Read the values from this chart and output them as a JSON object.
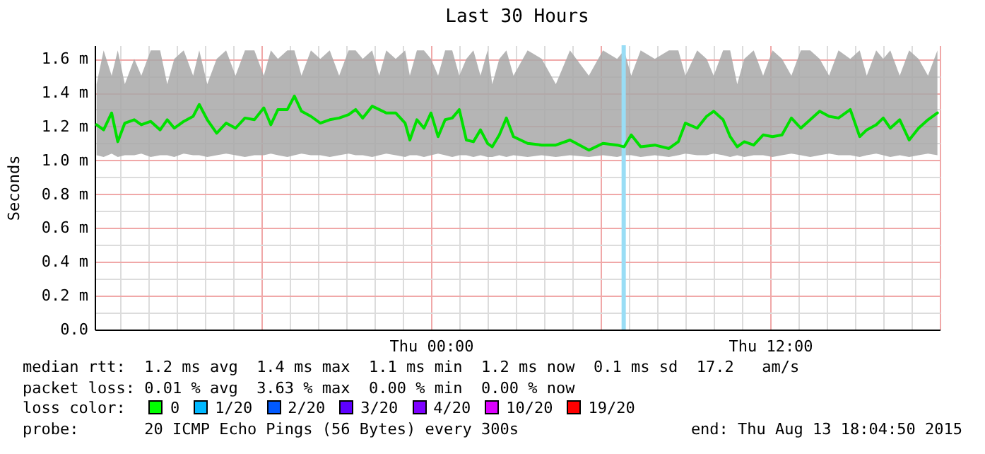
{
  "chart_data": {
    "type": "line",
    "title": "Last 30 Hours",
    "ylabel": "Seconds",
    "x": [
      "2015-08-12T12:10",
      "2015-08-12T12:25",
      "2015-08-12T12:42",
      "2015-08-12T12:55",
      "2015-08-12T13:10",
      "2015-08-12T13:30",
      "2015-08-12T13:45",
      "2015-08-12T14:05",
      "2015-08-12T14:25",
      "2015-08-12T14:40",
      "2015-08-12T14:55",
      "2015-08-12T15:15",
      "2015-08-12T15:35",
      "2015-08-12T15:48",
      "2015-08-12T16:05",
      "2015-08-12T16:25",
      "2015-08-12T16:45",
      "2015-08-12T17:05",
      "2015-08-12T17:25",
      "2015-08-12T17:45",
      "2015-08-12T18:05",
      "2015-08-12T18:20",
      "2015-08-12T18:35",
      "2015-08-12T18:55",
      "2015-08-12T19:10",
      "2015-08-12T19:25",
      "2015-08-12T19:45",
      "2015-08-12T20:05",
      "2015-08-12T20:25",
      "2015-08-12T20:45",
      "2015-08-12T21:05",
      "2015-08-12T21:20",
      "2015-08-12T21:35",
      "2015-08-12T21:55",
      "2015-08-12T22:10",
      "2015-08-12T22:25",
      "2015-08-12T22:45",
      "2015-08-12T23:05",
      "2015-08-12T23:15",
      "2015-08-12T23:30",
      "2015-08-12T23:45",
      "2015-08-13T00:00",
      "2015-08-13T00:15",
      "2015-08-13T00:30",
      "2015-08-13T00:45",
      "2015-08-13T01:00",
      "2015-08-13T01:15",
      "2015-08-13T01:30",
      "2015-08-13T01:45",
      "2015-08-13T02:00",
      "2015-08-13T02:10",
      "2015-08-13T02:25",
      "2015-08-13T02:40",
      "2015-08-13T02:55",
      "2015-08-13T03:25",
      "2015-08-13T03:55",
      "2015-08-13T04:25",
      "2015-08-13T04:55",
      "2015-08-13T05:35",
      "2015-08-13T06:05",
      "2015-08-13T06:35",
      "2015-08-13T06:50",
      "2015-08-13T07:05",
      "2015-08-13T07:25",
      "2015-08-13T07:55",
      "2015-08-13T08:25",
      "2015-08-13T08:45",
      "2015-08-13T09:00",
      "2015-08-13T09:25",
      "2015-08-13T09:45",
      "2015-08-13T10:00",
      "2015-08-13T10:20",
      "2015-08-13T10:35",
      "2015-08-13T10:50",
      "2015-08-13T11:05",
      "2015-08-13T11:25",
      "2015-08-13T11:45",
      "2015-08-13T12:05",
      "2015-08-13T12:25",
      "2015-08-13T12:45",
      "2015-08-13T13:05",
      "2015-08-13T13:25",
      "2015-08-13T13:45",
      "2015-08-13T14:05",
      "2015-08-13T14:25",
      "2015-08-13T14:50",
      "2015-08-13T15:10",
      "2015-08-13T15:25",
      "2015-08-13T15:45",
      "2015-08-13T16:00",
      "2015-08-13T16:15",
      "2015-08-13T16:35",
      "2015-08-13T16:55",
      "2015-08-13T17:15",
      "2015-08-13T17:35",
      "2015-08-13T17:55"
    ],
    "series": [
      {
        "color": "#00e000",
        "values": [
          1.21,
          1.18,
          1.28,
          1.11,
          1.22,
          1.24,
          1.21,
          1.23,
          1.18,
          1.24,
          1.19,
          1.23,
          1.26,
          1.33,
          1.24,
          1.16,
          1.22,
          1.19,
          1.25,
          1.24,
          1.31,
          1.21,
          1.3,
          1.3,
          1.38,
          1.29,
          1.26,
          1.22,
          1.24,
          1.25,
          1.27,
          1.3,
          1.25,
          1.32,
          1.3,
          1.28,
          1.28,
          1.22,
          1.12,
          1.24,
          1.19,
          1.28,
          1.14,
          1.24,
          1.25,
          1.3,
          1.12,
          1.11,
          1.18,
          1.1,
          1.08,
          1.15,
          1.25,
          1.14,
          1.1,
          1.09,
          1.09,
          1.12,
          1.06,
          1.1,
          1.09,
          1.08,
          1.15,
          1.08,
          1.09,
          1.07,
          1.11,
          1.22,
          1.19,
          1.26,
          1.29,
          1.24,
          1.14,
          1.08,
          1.11,
          1.09,
          1.15,
          1.14,
          1.15,
          1.25,
          1.19,
          1.24,
          1.29,
          1.26,
          1.25,
          1.3,
          1.14,
          1.18,
          1.21,
          1.25,
          1.19,
          1.24,
          1.12,
          1.19,
          1.24,
          1.28
        ],
        "lower": [
          1.03,
          1.02,
          1.04,
          1.02,
          1.03,
          1.03,
          1.04,
          1.02,
          1.03,
          1.03,
          1.02,
          1.04,
          1.03,
          1.03,
          1.02,
          1.03,
          1.04,
          1.03,
          1.02,
          1.03,
          1.03,
          1.04,
          1.03,
          1.02,
          1.03,
          1.04,
          1.03,
          1.03,
          1.02,
          1.03,
          1.04,
          1.03,
          1.03,
          1.02,
          1.03,
          1.04,
          1.03,
          1.02,
          1.03,
          1.03,
          1.02,
          1.03,
          1.04,
          1.03,
          1.02,
          1.03,
          1.03,
          1.02,
          1.03,
          1.02,
          1.02,
          1.03,
          1.02,
          1.03,
          1.02,
          1.03,
          1.02,
          1.03,
          1.02,
          1.03,
          1.02,
          1.03,
          1.03,
          1.02,
          1.03,
          1.02,
          1.03,
          1.04,
          1.03,
          1.03,
          1.04,
          1.03,
          1.02,
          1.03,
          1.02,
          1.03,
          1.03,
          1.02,
          1.03,
          1.04,
          1.03,
          1.02,
          1.03,
          1.04,
          1.03,
          1.03,
          1.02,
          1.03,
          1.04,
          1.03,
          1.02,
          1.03,
          1.02,
          1.03,
          1.04,
          1.03
        ],
        "upper": [
          1.45,
          1.65,
          1.5,
          1.65,
          1.45,
          1.6,
          1.5,
          1.65,
          1.65,
          1.45,
          1.6,
          1.65,
          1.5,
          1.65,
          1.45,
          1.6,
          1.65,
          1.5,
          1.65,
          1.65,
          1.5,
          1.65,
          1.6,
          1.65,
          1.65,
          1.5,
          1.65,
          1.6,
          1.65,
          1.5,
          1.65,
          1.65,
          1.6,
          1.65,
          1.5,
          1.65,
          1.6,
          1.65,
          1.5,
          1.65,
          1.65,
          1.6,
          1.5,
          1.65,
          1.65,
          1.5,
          1.6,
          1.65,
          1.5,
          1.65,
          1.45,
          1.6,
          1.65,
          1.5,
          1.65,
          1.6,
          1.45,
          1.65,
          1.5,
          1.65,
          1.6,
          1.65,
          1.5,
          1.65,
          1.6,
          1.65,
          1.65,
          1.5,
          1.65,
          1.6,
          1.5,
          1.65,
          1.65,
          1.45,
          1.6,
          1.65,
          1.5,
          1.65,
          1.6,
          1.5,
          1.65,
          1.65,
          1.6,
          1.5,
          1.65,
          1.6,
          1.65,
          1.5,
          1.65,
          1.6,
          1.65,
          1.5,
          1.65,
          1.6,
          1.5,
          1.65
        ]
      }
    ],
    "xlim": [
      "2015-08-12T12:06",
      "2015-08-13T18:00"
    ],
    "xticks": [
      {
        "value": "2015-08-12T13:00",
        "label": null
      },
      {
        "value": "2015-08-12T14:00",
        "label": null
      },
      {
        "value": "2015-08-12T15:00",
        "label": null
      },
      {
        "value": "2015-08-12T16:00",
        "label": null
      },
      {
        "value": "2015-08-12T17:00",
        "label": null
      },
      {
        "value": "2015-08-12T18:00",
        "label": null
      },
      {
        "value": "2015-08-12T19:00",
        "label": null
      },
      {
        "value": "2015-08-12T20:00",
        "label": null
      },
      {
        "value": "2015-08-12T21:00",
        "label": null
      },
      {
        "value": "2015-08-12T22:00",
        "label": null
      },
      {
        "value": "2015-08-12T23:00",
        "label": null
      },
      {
        "value": "2015-08-13T00:00",
        "label": "Thu 00:00"
      },
      {
        "value": "2015-08-13T01:00",
        "label": null
      },
      {
        "value": "2015-08-13T02:00",
        "label": null
      },
      {
        "value": "2015-08-13T03:00",
        "label": null
      },
      {
        "value": "2015-08-13T04:00",
        "label": null
      },
      {
        "value": "2015-08-13T05:00",
        "label": null
      },
      {
        "value": "2015-08-13T06:00",
        "label": null
      },
      {
        "value": "2015-08-13T07:00",
        "label": null
      },
      {
        "value": "2015-08-13T08:00",
        "label": null
      },
      {
        "value": "2015-08-13T09:00",
        "label": null
      },
      {
        "value": "2015-08-13T10:00",
        "label": null
      },
      {
        "value": "2015-08-13T11:00",
        "label": null
      },
      {
        "value": "2015-08-13T12:00",
        "label": "Thu 12:00"
      },
      {
        "value": "2015-08-13T13:00",
        "label": null
      },
      {
        "value": "2015-08-13T14:00",
        "label": null
      },
      {
        "value": "2015-08-13T15:00",
        "label": null
      },
      {
        "value": "2015-08-13T16:00",
        "label": null
      },
      {
        "value": "2015-08-13T17:00",
        "label": null
      },
      {
        "value": "2015-08-13T18:00",
        "label": null
      }
    ],
    "ylim": [
      0,
      1.68
    ],
    "yticks": [
      {
        "value": 0,
        "label": "0.0"
      },
      {
        "value": 0.1,
        "label": null
      },
      {
        "value": 0.2,
        "label": "0.2 m"
      },
      {
        "value": 0.3,
        "label": null
      },
      {
        "value": 0.4,
        "label": "0.4 m"
      },
      {
        "value": 0.5,
        "label": null
      },
      {
        "value": 0.6,
        "label": "0.6 m"
      },
      {
        "value": 0.7,
        "label": null
      },
      {
        "value": 0.8,
        "label": "0.8 m"
      },
      {
        "value": 0.9,
        "label": null
      },
      {
        "value": 1.0,
        "label": "1.0 m"
      },
      {
        "value": 1.1,
        "label": null
      },
      {
        "value": 1.2,
        "label": "1.2 m"
      },
      {
        "value": 1.3,
        "label": null
      },
      {
        "value": 1.4,
        "label": "1.4 m"
      },
      {
        "value": 1.5,
        "label": null
      },
      {
        "value": 1.6,
        "label": "1.6 m"
      }
    ],
    "grid": true,
    "ref_lines": [
      {
        "axis": "x",
        "value": "2015-08-13T06:49",
        "color": "#99ddf5"
      }
    ],
    "annotations": [
      "median rtt:  1.2 ms avg  1.4 ms max  1.1 ms min  1.2 ms now  0.1 ms sd  17.2   am/s",
      "packet loss: 0.01 % avg  3.63 % max  0.00 % min  0.00 % now",
      "loss color:  0  1/20  2/20  3/20  4/20  10/20  19/20",
      "probe:       20 ICMP Echo Pings (56 Bytes) every 300s",
      "end: Thu Aug 13 18:04:50 2015"
    ]
  }
}
